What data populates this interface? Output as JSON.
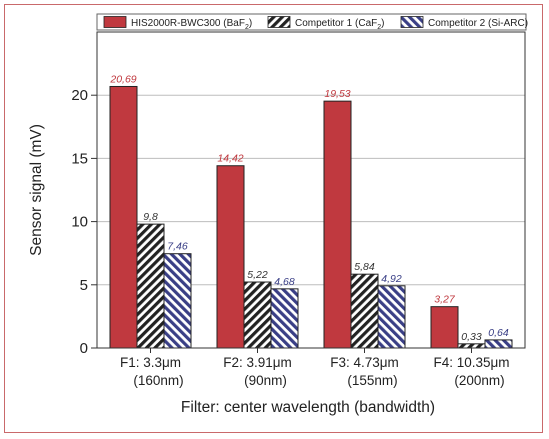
{
  "chart_data": {
    "type": "bar",
    "title": "",
    "xlabel": "Filter: center wavelength (bandwidth)",
    "ylabel": "Sensor signal (mV)",
    "ylim": [
      0,
      25
    ],
    "yticks": [
      0,
      5,
      10,
      15,
      20
    ],
    "grid": true,
    "legend_position": "top",
    "categories": [
      {
        "line1": "F1: 3.3μm",
        "line2": "(160nm)"
      },
      {
        "line1": "F2: 3.91μm",
        "line2": "(90nm)"
      },
      {
        "line1": "F3: 4.73μm",
        "line2": "(155nm)"
      },
      {
        "line1": "F4: 10.35μm",
        "line2": "(200nm)"
      }
    ],
    "series": [
      {
        "name": "HIS2000R-BWC300 (BaF2)",
        "legend": {
          "main": "HIS2000R-BWC300 (BaF",
          "sub": "2",
          "tail": ")"
        },
        "values": [
          20.69,
          14.42,
          19.53,
          3.27
        ],
        "labels": [
          "20,69",
          "14,42",
          "19,53",
          "3,27"
        ],
        "color": "#c0393f",
        "label_color": "#c0393f",
        "pattern": "solid"
      },
      {
        "name": "Competitor 1 (CaF2)",
        "legend": {
          "main": "Competitor 1 (CaF",
          "sub": "2",
          "tail": ")"
        },
        "values": [
          9.8,
          5.22,
          5.84,
          0.33
        ],
        "labels": [
          "9,8",
          "5,22",
          "5,84",
          "0,33"
        ],
        "color": "#222222",
        "label_color": "#333333",
        "pattern": "hatch-dark"
      },
      {
        "name": "Competitor 2 (Si-ARC)",
        "legend": {
          "main": "Competitor 2 (Si-ARC)",
          "sub": "",
          "tail": ""
        },
        "values": [
          7.46,
          4.68,
          4.92,
          0.64
        ],
        "labels": [
          "7,46",
          "4,68",
          "4,92",
          "0,64"
        ],
        "color": "#3a3f86",
        "label_color": "#3a3f86",
        "pattern": "hatch-blue"
      }
    ]
  }
}
